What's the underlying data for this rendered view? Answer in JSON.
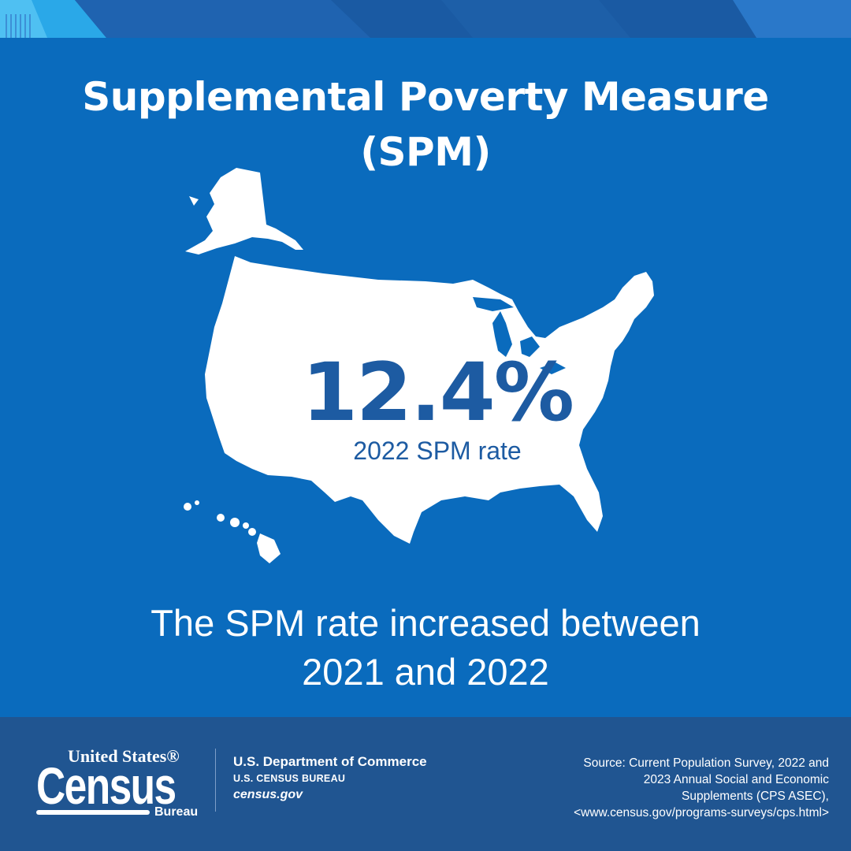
{
  "header": {
    "title_line1": "Supplemental Poverty Measure",
    "title_line2": "(SPM)"
  },
  "figure": {
    "rate": "12.4%",
    "rate_label": "2022 SPM rate",
    "map_icon": "united-states-map-icon"
  },
  "statement": {
    "line1": "The SPM rate increased between",
    "line2": "2021 and 2022"
  },
  "footer": {
    "logo": {
      "top": "United States®",
      "main": "Census",
      "bureau": "Bureau"
    },
    "department": "U.S. Department of Commerce",
    "bureau_name": "U.S. CENSUS BUREAU",
    "website": "census.gov",
    "source_lines": [
      "Source: Current Population Survey, 2022 and",
      "2023 Annual Social and Economic",
      "Supplements (CPS ASEC),",
      "<www.census.gov/programs-surveys/cps.html>"
    ]
  },
  "colors": {
    "background": "#0a6bbd",
    "footer": "#205591",
    "rate_text": "#1d5ba2",
    "accent_light": "#2aa8e8"
  }
}
